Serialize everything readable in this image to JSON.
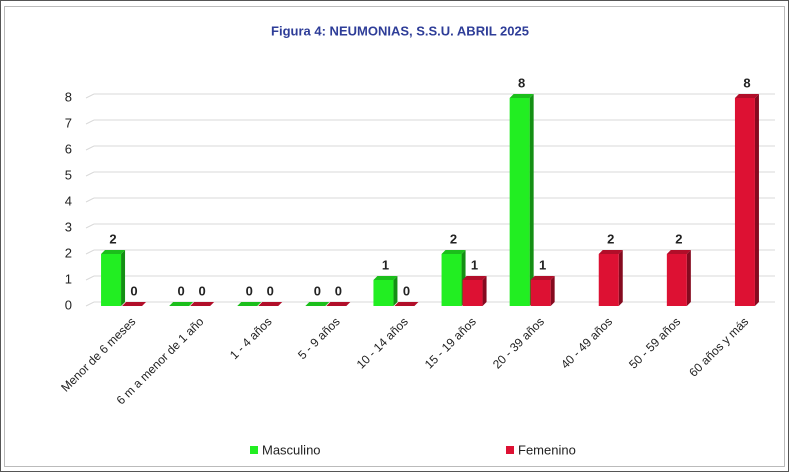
{
  "chart_data": {
    "type": "bar",
    "title": "Figura 4: NEUMONIAS, S.S.U. ABRIL 2025",
    "categories": [
      "Menor de 6 meses",
      "6 m a menor de 1 año",
      "1 - 4 años",
      "5 - 9 años",
      "10 - 14 años",
      "15 - 19 años",
      "20 - 39 años",
      "40 - 49 años",
      "50 - 59 años",
      "60 años y más"
    ],
    "series": [
      {
        "name": "Masculino",
        "color": "#22ee22",
        "values": [
          2,
          0,
          0,
          0,
          1,
          2,
          8,
          null,
          null,
          null
        ]
      },
      {
        "name": "Femenino",
        "color": "#dd1133",
        "values": [
          0,
          0,
          0,
          0,
          0,
          1,
          1,
          2,
          2,
          8
        ]
      }
    ],
    "ylim": [
      0,
      8
    ],
    "yticks": [
      0,
      1,
      2,
      3,
      4,
      5,
      6,
      7,
      8
    ],
    "grid": true,
    "legend": "bottom"
  }
}
